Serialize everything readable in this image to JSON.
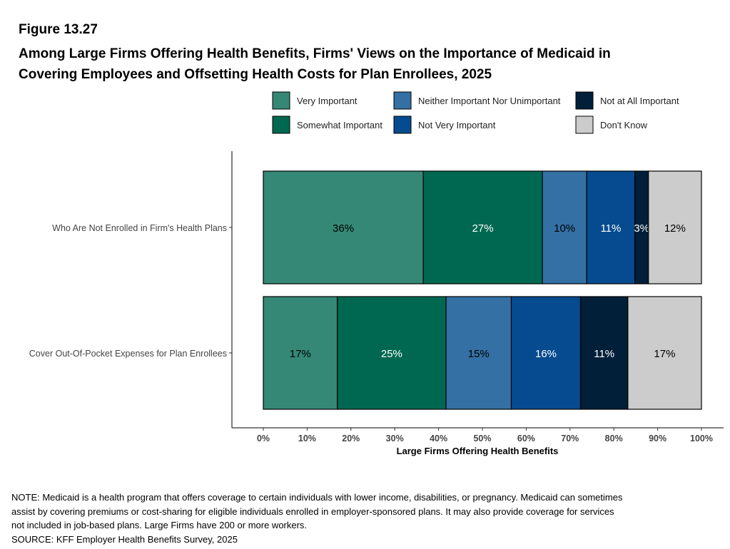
{
  "figure": {
    "label": "Figure 13.27",
    "title_lines": [
      "Among Large Firms Offering Health Benefits, Firms' Views on the Importance of Medicaid in",
      "Covering Employees and Offsetting Health Costs for Plan Enrollees, 2025"
    ]
  },
  "chart_data": {
    "type": "bar",
    "orientation": "horizontal",
    "stacked": true,
    "title": "Among Large Firms Offering Health Benefits, Firms' Views on the Importance of Medicaid in Covering Employees and Offsetting Health Costs for Plan Enrollees, 2025",
    "xlabel": "Large Firms Offering Health Benefits",
    "ylabel": "",
    "xlim": [
      0,
      100
    ],
    "x_ticks": [
      "0%",
      "10%",
      "20%",
      "30%",
      "40%",
      "50%",
      "60%",
      "70%",
      "80%",
      "90%",
      "100%"
    ],
    "grid": false,
    "legend_position": "top",
    "categories": [
      "Who Are Not Enrolled in Firm's Health Plans",
      "Cover Out-Of-Pocket Expenses for Plan Enrollees"
    ],
    "series": [
      {
        "name": "Very Important",
        "color": "#358875",
        "label_color": "#000000",
        "values": [
          36.5,
          16.9
        ],
        "labels": [
          "36%",
          "17%"
        ]
      },
      {
        "name": "Somewhat Important",
        "color": "#006851",
        "label_color": "#ffffff",
        "values": [
          27.2,
          24.8
        ],
        "labels": [
          "27%",
          "25%"
        ]
      },
      {
        "name": "Neither Important Nor Unimportant",
        "color": "#3470a3",
        "label_color": "#000000",
        "values": [
          10.1,
          14.9
        ],
        "labels": [
          "10%",
          "15%"
        ]
      },
      {
        "name": "Not Very Important",
        "color": "#064b8f",
        "label_color": "#ffffff",
        "values": [
          11.0,
          15.8
        ],
        "labels": [
          "11%",
          "16%"
        ]
      },
      {
        "name": "Not at All Important",
        "color": "#011f39",
        "label_color": "#ffffff",
        "values": [
          3.1,
          10.8
        ],
        "labels": [
          "3%",
          "11%"
        ]
      },
      {
        "name": "Don't Know",
        "color": "#cccccc",
        "label_color": "#000000",
        "values": [
          12.1,
          16.8
        ],
        "labels": [
          "12%",
          "17%"
        ]
      }
    ]
  },
  "notes": [
    "NOTE: Medicaid is a health program that offers coverage to certain individuals with lower income, disabilities, or pregnancy. Medicaid can sometimes",
    "assist by covering premiums or cost-sharing for eligible individuals enrolled in employer-sponsored plans. It may also provide coverage for services",
    "not included in job-based plans. Large Firms have 200 or more workers.",
    "SOURCE: KFF Employer Health Benefits Survey, 2025"
  ]
}
